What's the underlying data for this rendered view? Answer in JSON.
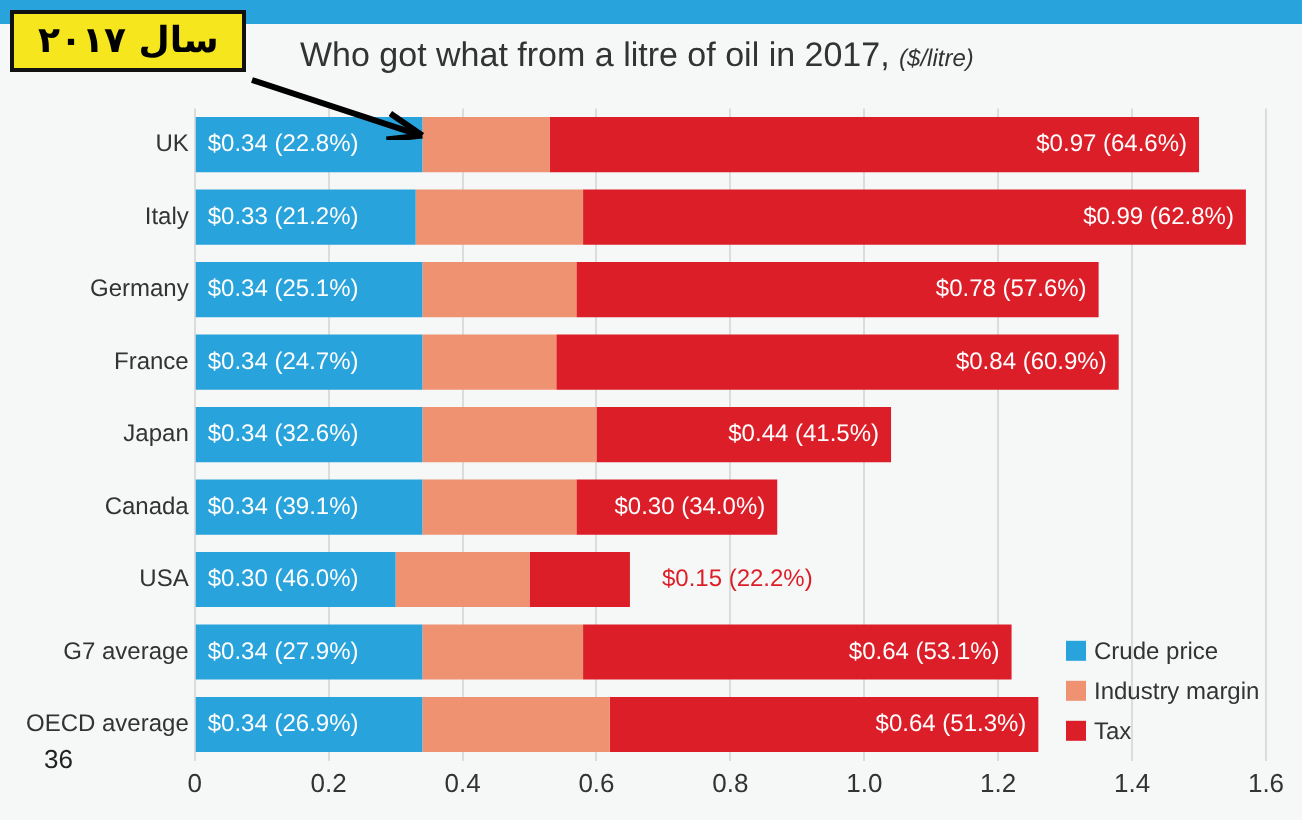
{
  "chart_data": {
    "type": "bar",
    "orientation": "horizontal",
    "stacked": true,
    "title": "Who got what from a litre of oil in 2017,",
    "subtitle": "($/litre)",
    "categories": [
      "UK",
      "Italy",
      "Germany",
      "France",
      "Japan",
      "Canada",
      "USA",
      "G7 average",
      "OECD average"
    ],
    "series": [
      {
        "name": "Crude price",
        "color": "#29a3dc",
        "values": [
          0.34,
          0.33,
          0.34,
          0.34,
          0.34,
          0.34,
          0.3,
          0.34,
          0.34
        ],
        "value_labels": [
          "$0.34 (22.8%)",
          "$0.33 (21.2%)",
          "$0.34 (25.1%)",
          "$0.34 (24.7%)",
          "$0.34 (32.6%)",
          "$0.34 (39.1%)",
          "$0.30 (46.0%)",
          "$0.34 (27.9%)",
          "$0.34 (26.9%)"
        ]
      },
      {
        "name": "Industry margin",
        "color": "#ee9272",
        "values": [
          0.19,
          0.25,
          0.23,
          0.2,
          0.26,
          0.23,
          0.2,
          0.24,
          0.28
        ]
      },
      {
        "name": "Tax",
        "color": "#dc1e28",
        "values": [
          0.97,
          0.99,
          0.78,
          0.84,
          0.44,
          0.3,
          0.15,
          0.64,
          0.64
        ],
        "value_labels": [
          "$0.97 (64.6%)",
          "$0.99 (62.8%)",
          "$0.78 (57.6%)",
          "$0.84 (60.9%)",
          "$0.44 (41.5%)",
          "$0.30 (34.0%)",
          "$0.15 (22.2%)",
          "$0.64 (53.1%)",
          "$0.64 (51.3%)"
        ]
      }
    ],
    "xlim": [
      0,
      1.6
    ],
    "xticks": [
      0,
      0.2,
      0.4,
      0.6,
      0.8,
      {
        "value": 1,
        "label": "1.0"
      },
      1.2,
      1.4,
      1.6
    ],
    "grid": "x",
    "legend": "bottom right",
    "annotations": [
      {
        "text": "سال ۲۰۱۷",
        "x": 0.34,
        "y": "UK"
      },
      "36"
    ]
  }
}
